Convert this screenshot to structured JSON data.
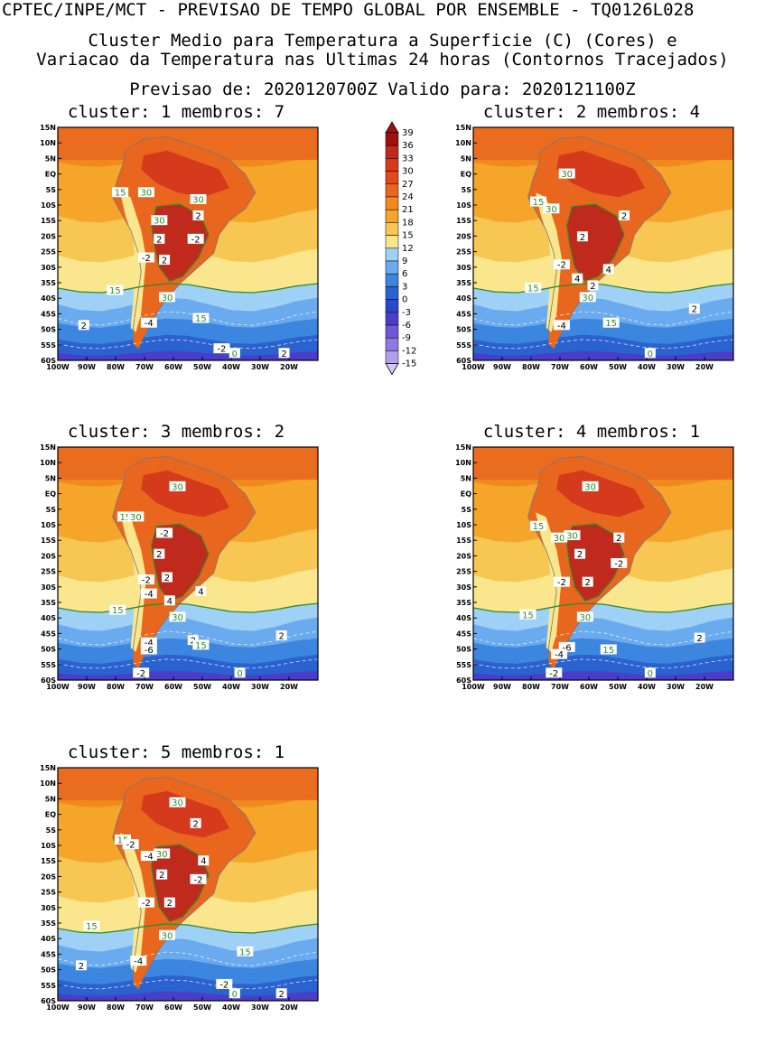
{
  "header": {
    "line1": "CPTEC/INPE/MCT - PREVISAO DE TEMPO GLOBAL POR ENSEMBLE - TQ0126L028",
    "line2": "Cluster Medio para Temperatura a Superficie (C) (Cores) e",
    "line3": "Variacao da Temperatura nas Ultimas 24 horas (Contornos Tracejados)",
    "line4": "Previsao de: 2020120700Z    Valido para: 2020121100Z"
  },
  "axes": {
    "lat_labels": [
      "15N",
      "10N",
      "5N",
      "EQ",
      "5S",
      "10S",
      "15S",
      "20S",
      "25S",
      "30S",
      "35S",
      "40S",
      "45S",
      "50S",
      "55S",
      "60S"
    ],
    "lon_labels": [
      "100W",
      "90W",
      "80W",
      "70W",
      "60W",
      "50W",
      "40W",
      "30W",
      "20W"
    ]
  },
  "legend": {
    "levels": [
      "39",
      "36",
      "33",
      "30",
      "27",
      "24",
      "21",
      "18",
      "15",
      "12",
      "9",
      "6",
      "3",
      "0",
      "-3",
      "-6",
      "-9",
      "-12",
      "-15"
    ],
    "colors": [
      "#a01010",
      "#c02a1c",
      "#d53a1c",
      "#e04a1e",
      "#e9661e",
      "#f08a1e",
      "#f5a62a",
      "#f8c652",
      "#fae68c",
      "#9fd0f5",
      "#6aaaee",
      "#3c86e0",
      "#2a62d0",
      "#2a48c8",
      "#4a3ec8",
      "#6f57d8",
      "#8e7ae2",
      "#b0a0ea",
      "#d3c8f3"
    ]
  },
  "panels": [
    {
      "title": "cluster: 1   membros: 7",
      "contour_labels": [
        {
          "t": "15",
          "k": "solid"
        },
        {
          "t": "30",
          "k": "solid"
        },
        {
          "t": "30",
          "k": "solid"
        },
        {
          "t": "30",
          "k": "solid"
        },
        {
          "t": "2",
          "k": "dash"
        },
        {
          "t": "2",
          "k": "dash"
        },
        {
          "t": "-2",
          "k": "dash"
        },
        {
          "t": "-2",
          "k": "dash"
        },
        {
          "t": "2",
          "k": "dash"
        },
        {
          "t": "15",
          "k": "solid"
        },
        {
          "t": "30",
          "k": "solid"
        },
        {
          "t": "-4",
          "k": "dash"
        },
        {
          "t": "2",
          "k": "dash"
        },
        {
          "t": "15",
          "k": "solid"
        },
        {
          "t": "-2",
          "k": "dash"
        },
        {
          "t": "0",
          "k": "solid"
        },
        {
          "t": "2",
          "k": "dash"
        }
      ]
    },
    {
      "title": "cluster: 2   membros: 4",
      "contour_labels": [
        {
          "t": "30",
          "k": "solid"
        },
        {
          "t": "15",
          "k": "solid"
        },
        {
          "t": "30",
          "k": "solid"
        },
        {
          "t": "2",
          "k": "dash"
        },
        {
          "t": "2",
          "k": "dash"
        },
        {
          "t": "-2",
          "k": "dash"
        },
        {
          "t": "4",
          "k": "dash"
        },
        {
          "t": "4",
          "k": "dash"
        },
        {
          "t": "15",
          "k": "solid"
        },
        {
          "t": "2",
          "k": "dash"
        },
        {
          "t": "30",
          "k": "solid"
        },
        {
          "t": "-4",
          "k": "dash"
        },
        {
          "t": "15",
          "k": "solid"
        },
        {
          "t": "2",
          "k": "dash"
        },
        {
          "t": "0",
          "k": "solid"
        }
      ]
    },
    {
      "title": "cluster: 3   membros: 2",
      "contour_labels": [
        {
          "t": "30",
          "k": "solid"
        },
        {
          "t": "15",
          "k": "solid"
        },
        {
          "t": "30",
          "k": "solid"
        },
        {
          "t": "-2",
          "k": "dash"
        },
        {
          "t": "2",
          "k": "dash"
        },
        {
          "t": "2",
          "k": "dash"
        },
        {
          "t": "-2",
          "k": "dash"
        },
        {
          "t": "-4",
          "k": "dash"
        },
        {
          "t": "4",
          "k": "dash"
        },
        {
          "t": "4",
          "k": "dash"
        },
        {
          "t": "15",
          "k": "solid"
        },
        {
          "t": "30",
          "k": "solid"
        },
        {
          "t": "-4",
          "k": "dash"
        },
        {
          "t": "-6",
          "k": "dash"
        },
        {
          "t": "2",
          "k": "dash"
        },
        {
          "t": "15",
          "k": "solid"
        },
        {
          "t": "2",
          "k": "dash"
        },
        {
          "t": "-2",
          "k": "dash"
        },
        {
          "t": "0",
          "k": "solid"
        }
      ]
    },
    {
      "title": "cluster: 4   membros: 1",
      "contour_labels": [
        {
          "t": "30",
          "k": "solid"
        },
        {
          "t": "15",
          "k": "solid"
        },
        {
          "t": "30",
          "k": "solid"
        },
        {
          "t": "30",
          "k": "solid"
        },
        {
          "t": "2",
          "k": "dash"
        },
        {
          "t": "2",
          "k": "dash"
        },
        {
          "t": "-2",
          "k": "dash"
        },
        {
          "t": "-2",
          "k": "dash"
        },
        {
          "t": "2",
          "k": "dash"
        },
        {
          "t": "15",
          "k": "solid"
        },
        {
          "t": "30",
          "k": "solid"
        },
        {
          "t": "-6",
          "k": "dash"
        },
        {
          "t": "-4",
          "k": "dash"
        },
        {
          "t": "15",
          "k": "solid"
        },
        {
          "t": "2",
          "k": "dash"
        },
        {
          "t": "-2",
          "k": "dash"
        },
        {
          "t": "0",
          "k": "solid"
        }
      ]
    },
    {
      "title": "cluster: 5   membros: 1",
      "contour_labels": [
        {
          "t": "30",
          "k": "solid"
        },
        {
          "t": "2",
          "k": "dash"
        },
        {
          "t": "15",
          "k": "solid"
        },
        {
          "t": "-2",
          "k": "dash"
        },
        {
          "t": "-4",
          "k": "dash"
        },
        {
          "t": "30",
          "k": "solid"
        },
        {
          "t": "4",
          "k": "dash"
        },
        {
          "t": "2",
          "k": "dash"
        },
        {
          "t": "-2",
          "k": "dash"
        },
        {
          "t": "-2",
          "k": "dash"
        },
        {
          "t": "2",
          "k": "dash"
        },
        {
          "t": "15",
          "k": "solid"
        },
        {
          "t": "30",
          "k": "solid"
        },
        {
          "t": "2",
          "k": "dash"
        },
        {
          "t": "15",
          "k": "solid"
        },
        {
          "t": "-4",
          "k": "dash"
        },
        {
          "t": "-2",
          "k": "dash"
        },
        {
          "t": "0",
          "k": "solid"
        },
        {
          "t": "2",
          "k": "dash"
        }
      ]
    }
  ]
}
